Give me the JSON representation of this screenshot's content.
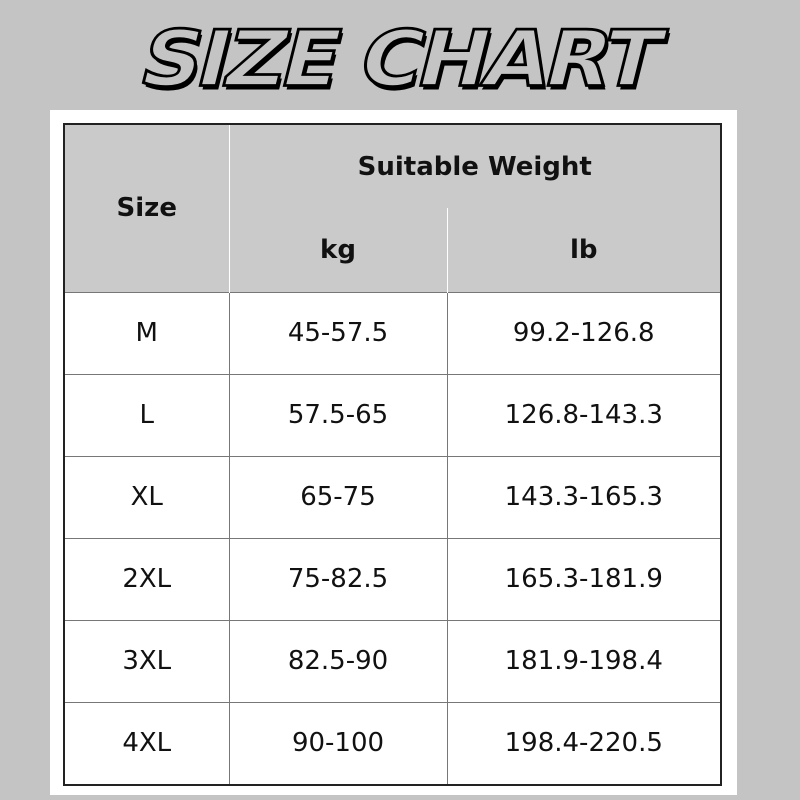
{
  "title": "SIZE CHART",
  "table": {
    "headers": {
      "size": "Size",
      "group": "Suitable Weight",
      "kg": "kg",
      "lb": "lb"
    },
    "rows": [
      {
        "size": "M",
        "kg": "45-57.5",
        "lb": "99.2-126.8"
      },
      {
        "size": "L",
        "kg": "57.5-65",
        "lb": "126.8-143.3"
      },
      {
        "size": "XL",
        "kg": "65-75",
        "lb": "143.3-165.3"
      },
      {
        "size": "2XL",
        "kg": "75-82.5",
        "lb": "165.3-181.9"
      },
      {
        "size": "3XL",
        "kg": "82.5-90",
        "lb": "181.9-198.4"
      },
      {
        "size": "4XL",
        "kg": "90-100",
        "lb": "198.4-220.5"
      }
    ]
  },
  "colors": {
    "background": "#c4c4c4",
    "header": "#cacaca"
  }
}
